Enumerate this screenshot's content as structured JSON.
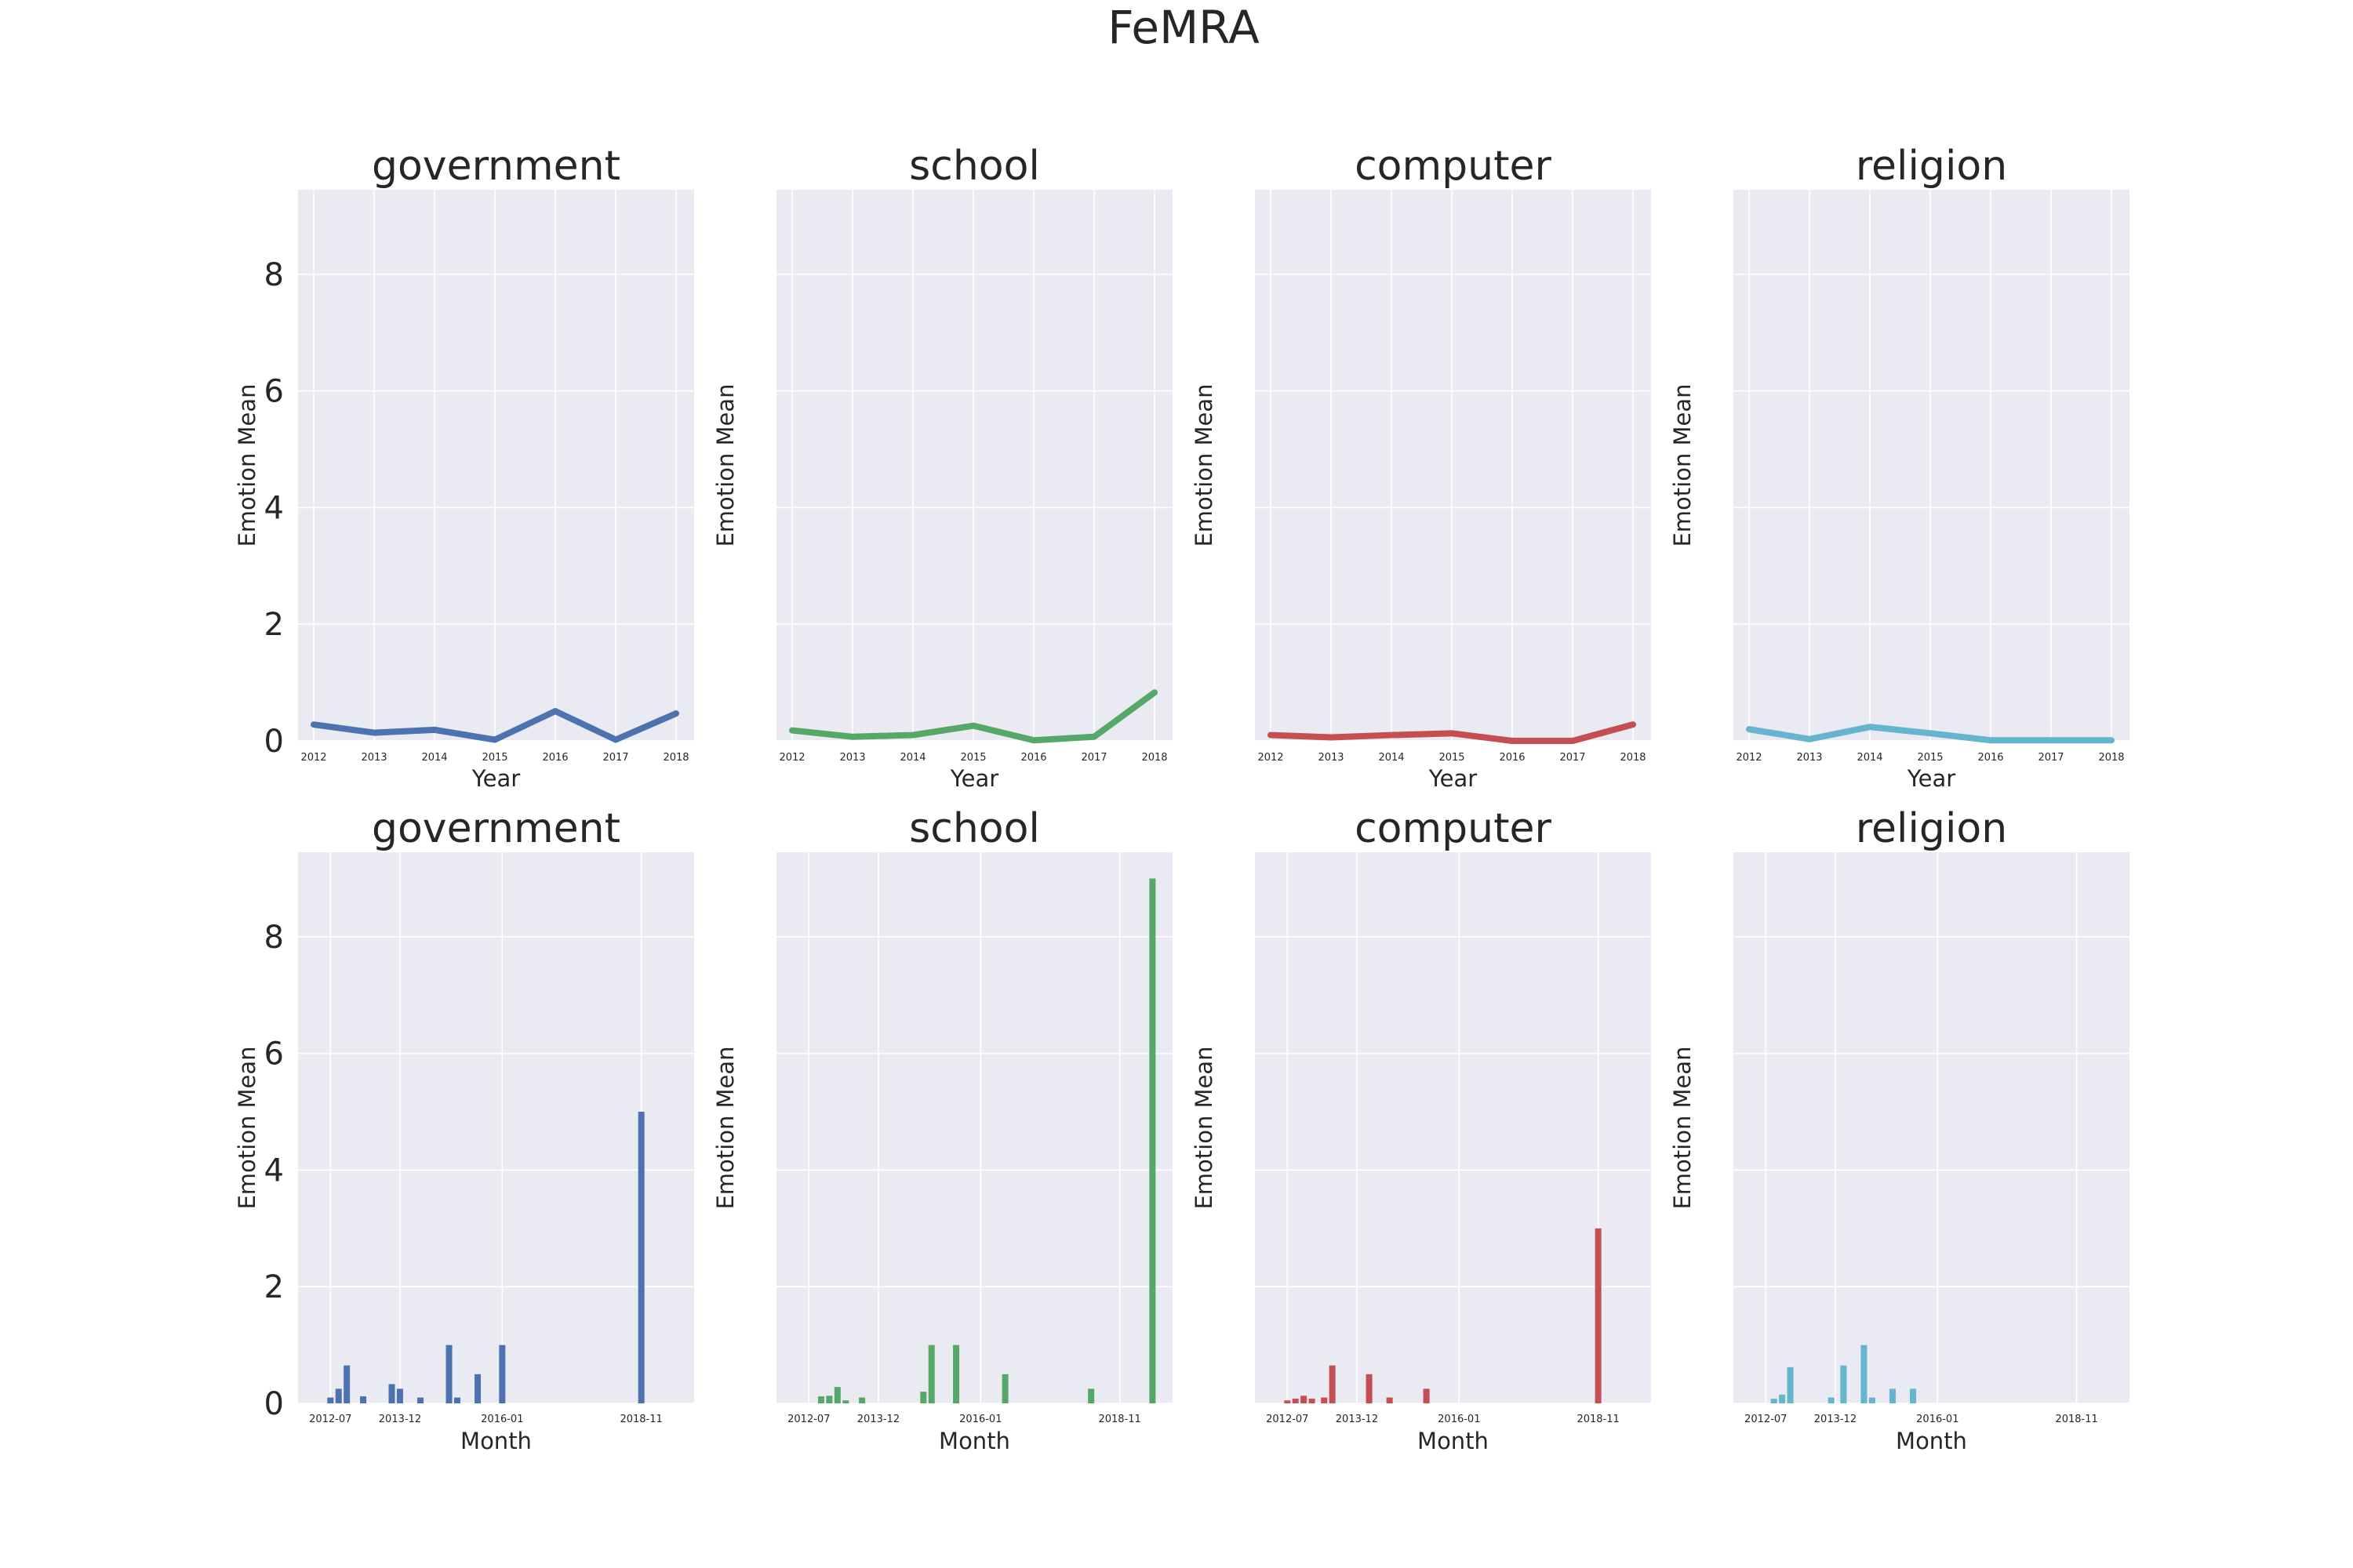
{
  "figure": {
    "title": "FeMRA"
  },
  "colors": {
    "government": "#4c72b0",
    "school": "#55a868",
    "computer": "#c44e52",
    "religion": "#64b5cd",
    "panel_bg": "#eaeaf2",
    "grid": "#ffffff"
  },
  "chart_data": [
    {
      "type": "line",
      "title": "government",
      "xlabel": "Year",
      "ylabel": "Emotion Mean",
      "x": [
        "2012",
        "2013",
        "2014",
        "2015",
        "2016",
        "2017",
        "2018"
      ],
      "y_ticks": [
        "0",
        "2",
        "4",
        "6",
        "8"
      ],
      "ylim": [
        0,
        9.45
      ],
      "series": [
        {
          "values": [
            0.28,
            0.14,
            0.19,
            0.02,
            0.51,
            0.02,
            0.47
          ]
        }
      ]
    },
    {
      "type": "line",
      "title": "school",
      "xlabel": "Year",
      "ylabel": "Emotion Mean",
      "x": [
        "2012",
        "2013",
        "2014",
        "2015",
        "2016",
        "2017",
        "2018"
      ],
      "y_ticks": [
        "0",
        "2",
        "4",
        "6",
        "8"
      ],
      "ylim": [
        0,
        9.45
      ],
      "series": [
        {
          "values": [
            0.18,
            0.07,
            0.1,
            0.26,
            0.01,
            0.07,
            0.83
          ]
        }
      ]
    },
    {
      "type": "line",
      "title": "computer",
      "xlabel": "Year",
      "ylabel": "Emotion Mean",
      "x": [
        "2012",
        "2013",
        "2014",
        "2015",
        "2016",
        "2017",
        "2018"
      ],
      "y_ticks": [
        "0",
        "2",
        "4",
        "6",
        "8"
      ],
      "ylim": [
        0,
        9.45
      ],
      "series": [
        {
          "values": [
            0.1,
            0.06,
            0.1,
            0.13,
            0.0,
            0.0,
            0.28
          ]
        }
      ]
    },
    {
      "type": "line",
      "title": "religion",
      "xlabel": "Year",
      "ylabel": "Emotion Mean",
      "x": [
        "2012",
        "2013",
        "2014",
        "2015",
        "2016",
        "2017",
        "2018"
      ],
      "y_ticks": [
        "0",
        "2",
        "4",
        "6",
        "8"
      ],
      "ylim": [
        0,
        9.45
      ],
      "series": [
        {
          "values": [
            0.2,
            0.03,
            0.24,
            0.13,
            0.01,
            0.01,
            0.01
          ]
        }
      ]
    },
    {
      "type": "bar",
      "title": "government",
      "xlabel": "Month",
      "ylabel": "Emotion Mean",
      "x_ticks": [
        "2012-07",
        "2013-12",
        "2016-01",
        "2018-11"
      ],
      "y_ticks": [
        "0",
        "2",
        "4",
        "6",
        "8"
      ],
      "ylim": [
        0,
        9.45
      ],
      "series": [
        {
          "points": [
            {
              "x": "2012-07",
              "y": 0.1
            },
            {
              "x": "2012-09",
              "y": 0.25
            },
            {
              "x": "2012-11",
              "y": 0.65
            },
            {
              "x": "2013-03",
              "y": 0.12
            },
            {
              "x": "2013-10",
              "y": 0.33
            },
            {
              "x": "2013-12",
              "y": 0.25
            },
            {
              "x": "2014-05",
              "y": 0.1
            },
            {
              "x": "2014-12",
              "y": 1.0
            },
            {
              "x": "2015-02",
              "y": 0.1
            },
            {
              "x": "2015-07",
              "y": 0.5
            },
            {
              "x": "2016-01",
              "y": 1.0
            },
            {
              "x": "2018-11",
              "y": 5.0
            }
          ]
        }
      ]
    },
    {
      "type": "bar",
      "title": "school",
      "xlabel": "Month",
      "ylabel": "Emotion Mean",
      "x_ticks": [
        "2012-07",
        "2013-12",
        "2016-01",
        "2018-11"
      ],
      "y_ticks": [
        "0",
        "2",
        "4",
        "6",
        "8"
      ],
      "ylim": [
        0,
        9.45
      ],
      "series": [
        {
          "points": [
            {
              "x": "2012-10",
              "y": 0.12
            },
            {
              "x": "2012-12",
              "y": 0.13
            },
            {
              "x": "2013-02",
              "y": 0.28
            },
            {
              "x": "2013-04",
              "y": 0.05
            },
            {
              "x": "2013-08",
              "y": 0.1
            },
            {
              "x": "2014-11",
              "y": 0.2
            },
            {
              "x": "2015-01",
              "y": 1.0
            },
            {
              "x": "2015-07",
              "y": 1.0
            },
            {
              "x": "2016-07",
              "y": 0.5
            },
            {
              "x": "2018-04",
              "y": 0.25
            },
            {
              "x": "2019-07",
              "y": 9.0
            }
          ]
        }
      ]
    },
    {
      "type": "bar",
      "title": "computer",
      "xlabel": "Month",
      "ylabel": "Emotion Mean",
      "x_ticks": [
        "2012-07",
        "2013-12",
        "2016-01",
        "2018-11"
      ],
      "y_ticks": [
        "0",
        "2",
        "4",
        "6",
        "8"
      ],
      "ylim": [
        0,
        9.45
      ],
      "series": [
        {
          "points": [
            {
              "x": "2012-07",
              "y": 0.05
            },
            {
              "x": "2012-09",
              "y": 0.08
            },
            {
              "x": "2012-11",
              "y": 0.13
            },
            {
              "x": "2013-01",
              "y": 0.08
            },
            {
              "x": "2013-04",
              "y": 0.1
            },
            {
              "x": "2013-06",
              "y": 0.65
            },
            {
              "x": "2014-03",
              "y": 0.5
            },
            {
              "x": "2014-08",
              "y": 0.1
            },
            {
              "x": "2015-05",
              "y": 0.25
            },
            {
              "x": "2018-11",
              "y": 3.0
            }
          ]
        }
      ]
    },
    {
      "type": "bar",
      "title": "religion",
      "xlabel": "Month",
      "ylabel": "Emotion Mean",
      "x_ticks": [
        "2012-07",
        "2013-12",
        "2016-01",
        "2018-11"
      ],
      "y_ticks": [
        "0",
        "2",
        "4",
        "6",
        "8"
      ],
      "ylim": [
        0,
        9.45
      ],
      "series": [
        {
          "points": [
            {
              "x": "2012-09",
              "y": 0.08
            },
            {
              "x": "2012-11",
              "y": 0.15
            },
            {
              "x": "2013-01",
              "y": 0.62
            },
            {
              "x": "2013-11",
              "y": 0.1
            },
            {
              "x": "2014-02",
              "y": 0.65
            },
            {
              "x": "2014-07",
              "y": 1.0
            },
            {
              "x": "2014-09",
              "y": 0.1
            },
            {
              "x": "2015-02",
              "y": 0.25
            },
            {
              "x": "2015-07",
              "y": 0.25
            }
          ]
        }
      ]
    }
  ]
}
